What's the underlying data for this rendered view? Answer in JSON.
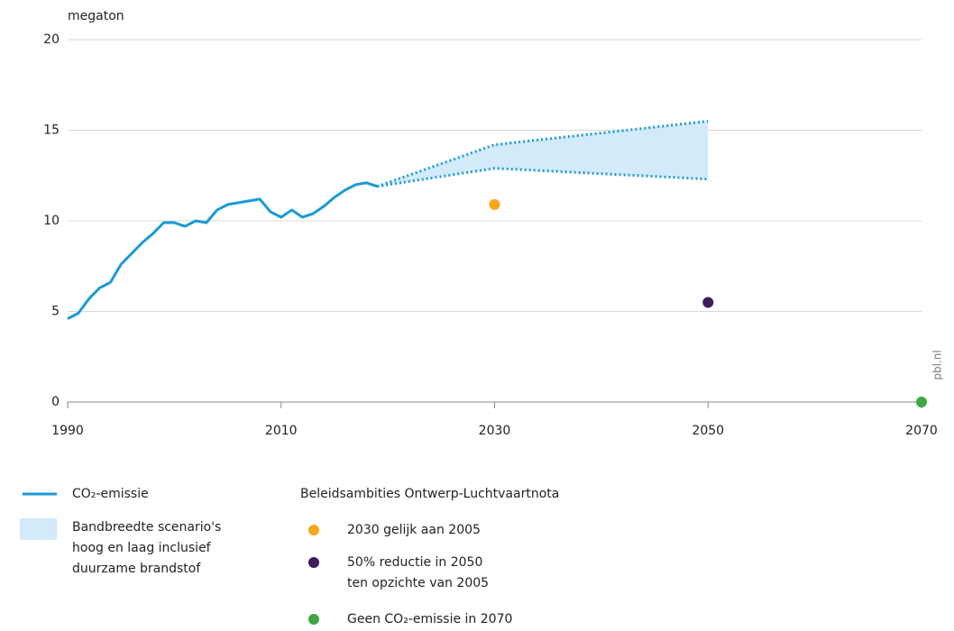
{
  "chart_data": {
    "type": "line",
    "y_label": "megaton",
    "xlim": [
      1990,
      2070
    ],
    "xticks": [
      1990,
      2010,
      2030,
      2050,
      2070
    ],
    "ylim": [
      0,
      20
    ],
    "yticks": [
      0,
      5,
      10,
      15,
      20
    ],
    "grid": true,
    "series": [
      {
        "name": "CO₂-emissie",
        "color": "#1a9ad6",
        "x": [
          1990,
          1991,
          1992,
          1993,
          1994,
          1995,
          1996,
          1997,
          1998,
          1999,
          2000,
          2001,
          2002,
          2003,
          2004,
          2005,
          2006,
          2007,
          2008,
          2009,
          2010,
          2011,
          2012,
          2013,
          2014,
          2015,
          2016,
          2017,
          2018,
          2019
        ],
        "values": [
          4.6,
          4.9,
          5.7,
          6.3,
          6.6,
          7.6,
          8.2,
          8.8,
          9.3,
          9.9,
          9.9,
          9.7,
          10.0,
          9.9,
          10.6,
          10.9,
          11.0,
          11.1,
          11.2,
          10.5,
          10.2,
          10.6,
          10.2,
          10.4,
          10.8,
          11.3,
          11.7,
          12.0,
          12.1,
          11.9
        ]
      }
    ],
    "band": {
      "name": [
        "Bandbreedte scenario's",
        "hoog en laag inclusief",
        "duurzame brandstof"
      ],
      "color": "#d2eafa",
      "line_color": "#1a9ad6",
      "x": [
        2019,
        2030,
        2050
      ],
      "high": [
        11.9,
        14.2,
        15.5
      ],
      "low": [
        11.9,
        12.9,
        12.3
      ]
    },
    "points_title": "Beleidsambities Ontwerp-Luchtvaartnota",
    "points": [
      {
        "name": [
          "2030 gelijk aan 2005"
        ],
        "x": 2030,
        "value": 10.9,
        "color": "#f6a71c"
      },
      {
        "name": [
          "50% reductie in 2050",
          "ten opzichte van 2005"
        ],
        "x": 2050,
        "value": 5.5,
        "color": "#3d1d5c"
      },
      {
        "name": [
          "Geen CO₂-emissie in 2070"
        ],
        "x": 2070,
        "value": 0,
        "color": "#3da743"
      }
    ],
    "source": "pbl.nl"
  }
}
